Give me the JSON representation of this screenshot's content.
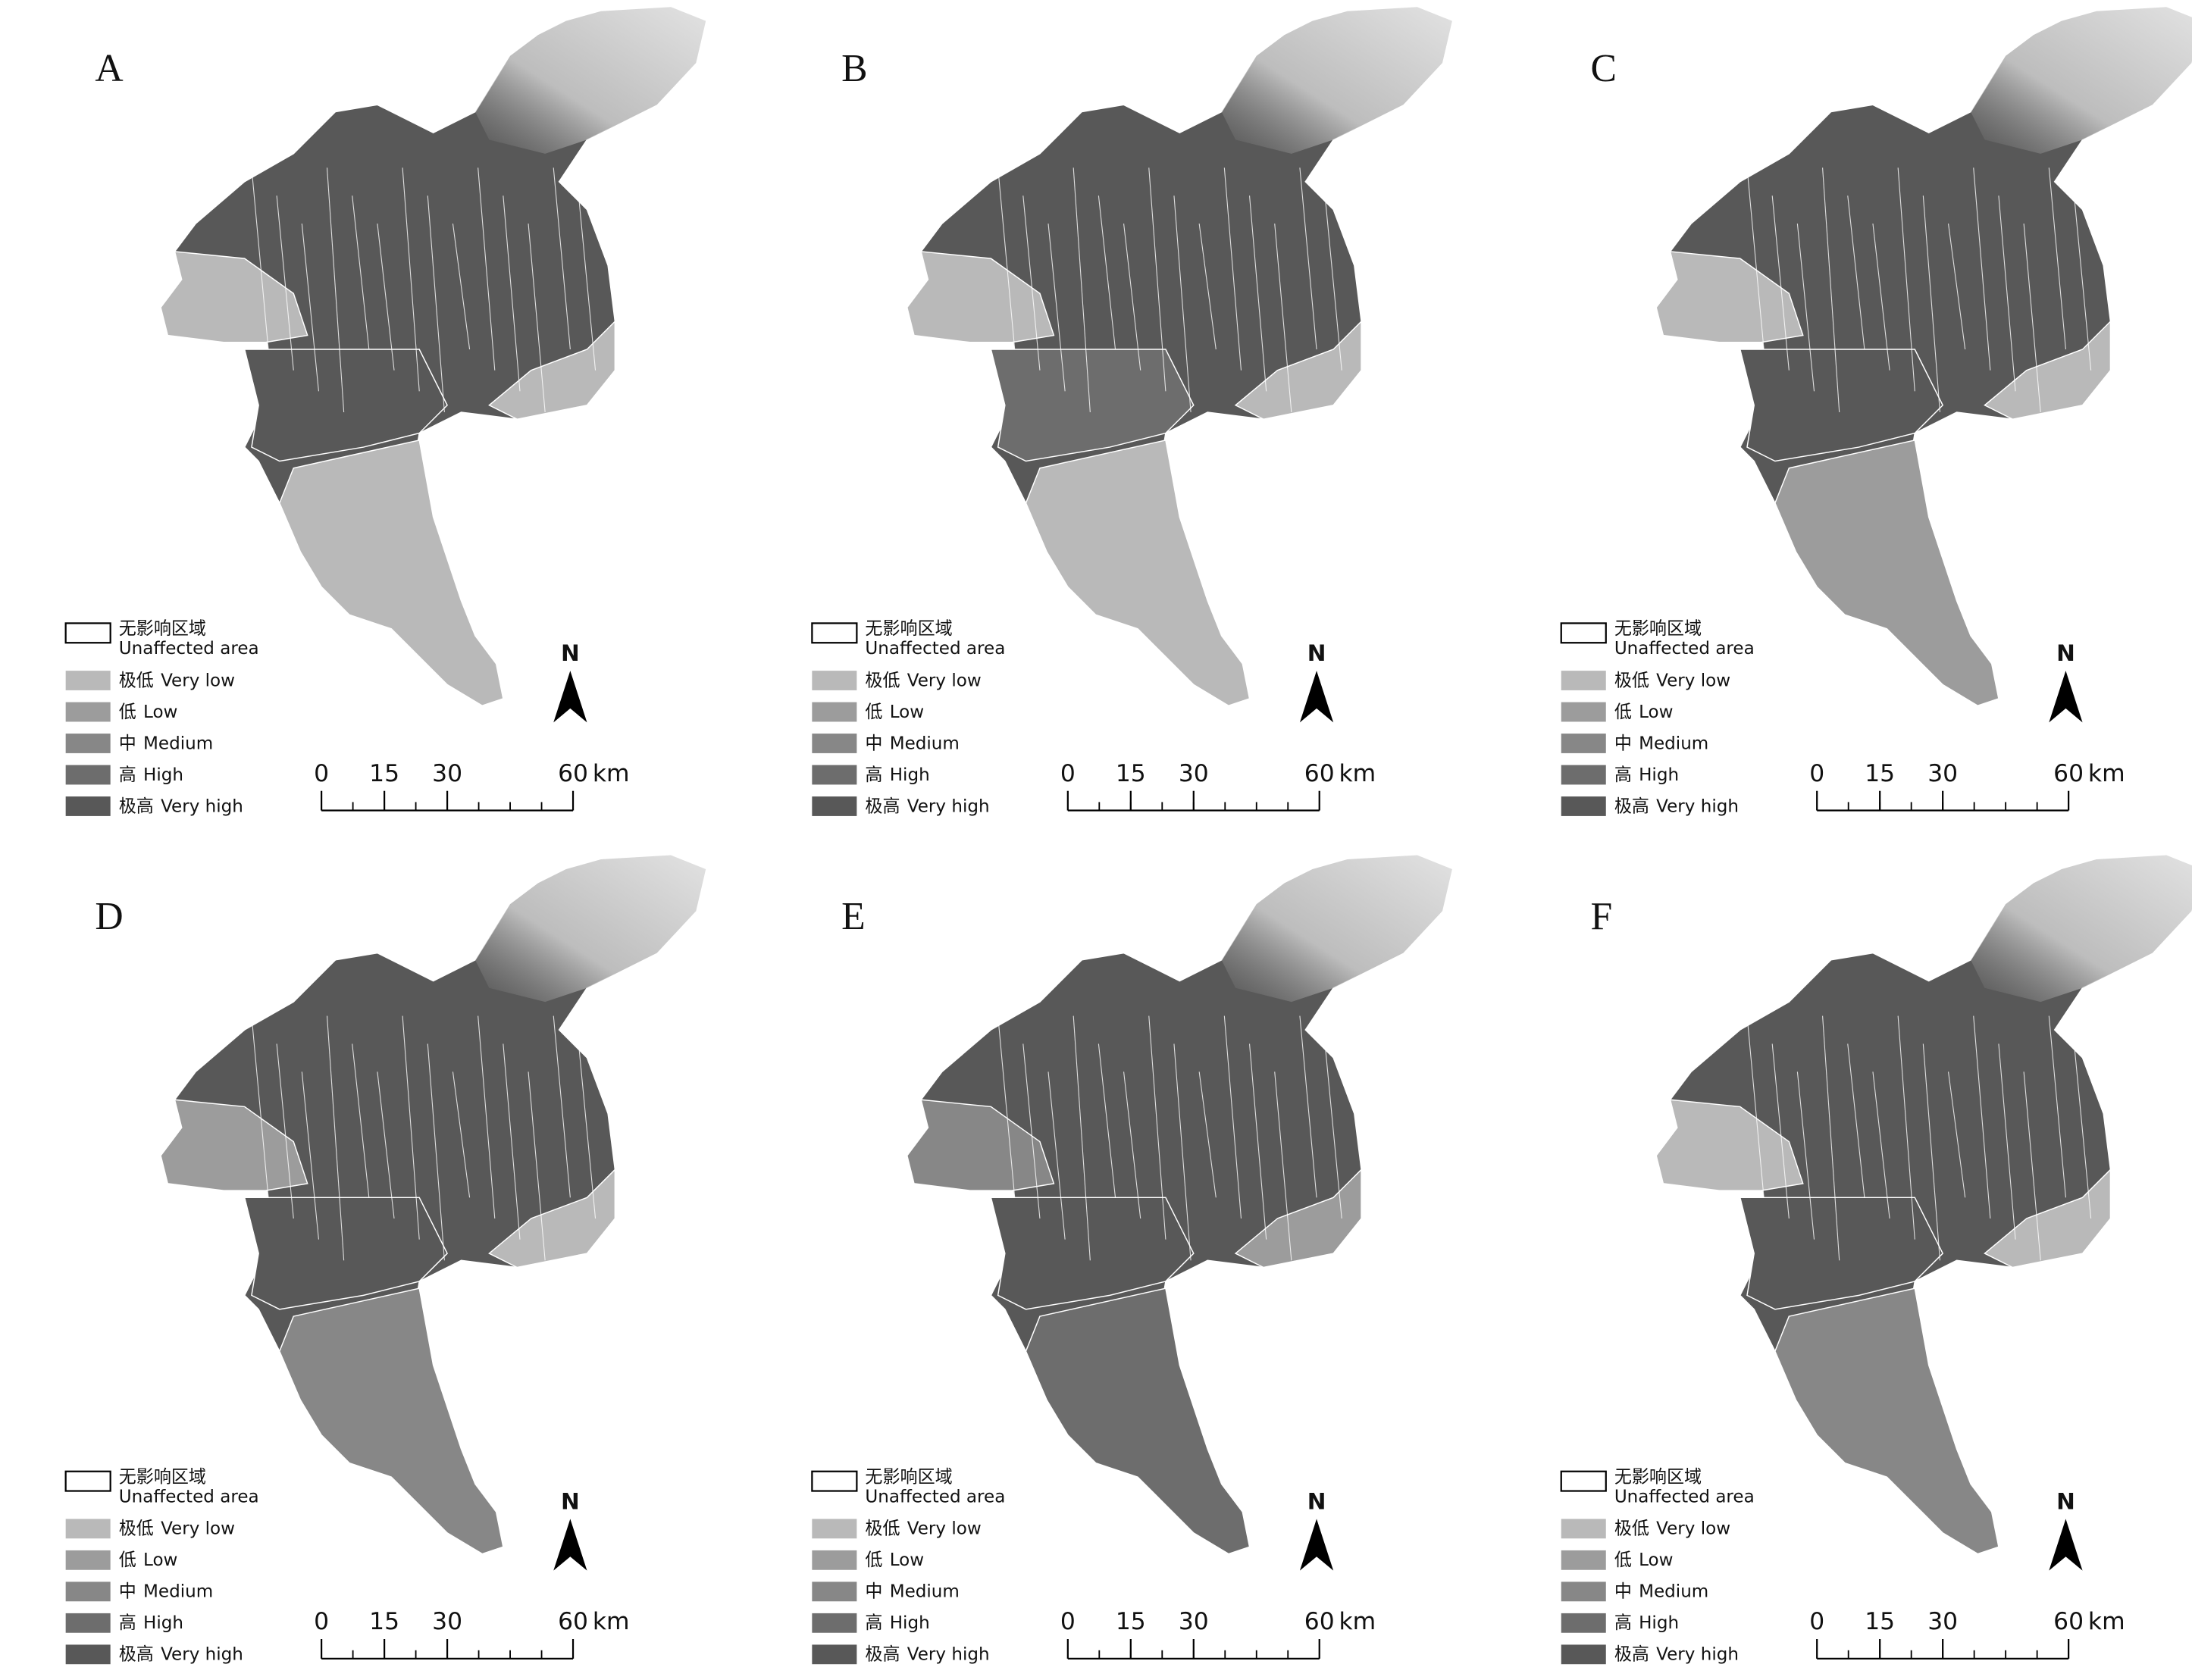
{
  "panels": [
    {
      "label": "A"
    },
    {
      "label": "B"
    },
    {
      "label": "C"
    },
    {
      "label": "D"
    },
    {
      "label": "E"
    },
    {
      "label": "F"
    }
  ],
  "legend": [
    {
      "zh": "无影响区域",
      "en": "Unaffected area",
      "color": "#ffffff"
    },
    {
      "zh": "极低",
      "en": "Very low",
      "color": "#b9b9b9"
    },
    {
      "zh": "低",
      "en": "Low",
      "color": "#9c9c9c"
    },
    {
      "zh": "中",
      "en": "Medium",
      "color": "#878787"
    },
    {
      "zh": "高",
      "en": "High",
      "color": "#6d6d6d"
    },
    {
      "zh": "极高",
      "en": "Very high",
      "color": "#585858"
    }
  ],
  "north_arrow": "N",
  "scale_bar": {
    "ticks": [
      0,
      15,
      30,
      60
    ],
    "unit": "km"
  }
}
